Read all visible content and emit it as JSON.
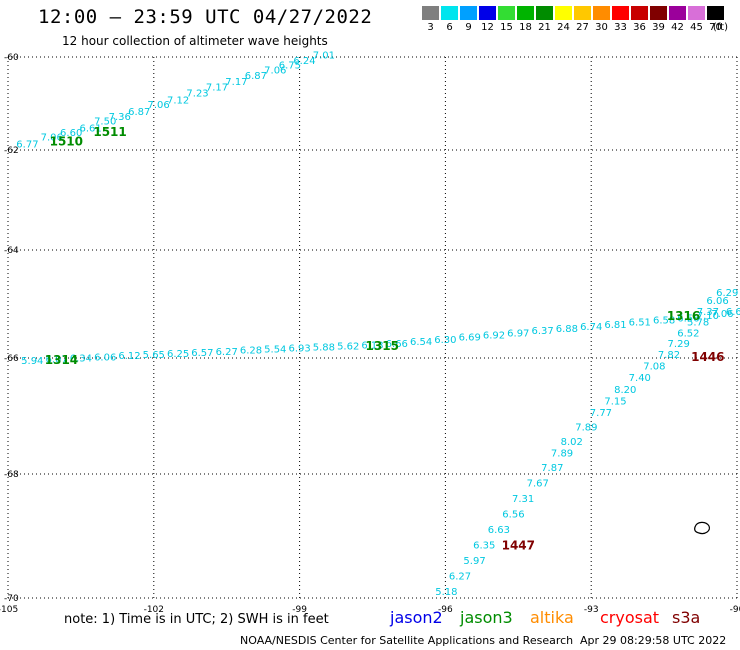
{
  "header": {
    "title": "12:00 – 23:59 UTC 04/27/2022",
    "subtitle": "12 hour collection of altimeter wave heights"
  },
  "legend": {
    "unit": "(ft)",
    "items": [
      {
        "label": "3",
        "color": "#7f7f7f"
      },
      {
        "label": "6",
        "color": "#00e5ee"
      },
      {
        "label": "9",
        "color": "#00a0ff"
      },
      {
        "label": "12",
        "color": "#0000e8"
      },
      {
        "label": "15",
        "color": "#33dd33"
      },
      {
        "label": "18",
        "color": "#00b400"
      },
      {
        "label": "21",
        "color": "#008c00"
      },
      {
        "label": "24",
        "color": "#ffff00"
      },
      {
        "label": "27",
        "color": "#ffc800"
      },
      {
        "label": "30",
        "color": "#ff8c00"
      },
      {
        "label": "33",
        "color": "#ff0000"
      },
      {
        "label": "36",
        "color": "#c80000"
      },
      {
        "label": "39",
        "color": "#800000"
      },
      {
        "label": "42",
        "color": "#9b009b"
      },
      {
        "label": "45",
        "color": "#d86fd8"
      },
      {
        "label": "70",
        "color": "#000000"
      }
    ]
  },
  "axes": {
    "lat": [
      {
        "label": "-60",
        "value": -60
      },
      {
        "label": "-62",
        "value": -62
      },
      {
        "label": "-64",
        "value": -64
      },
      {
        "label": "-66",
        "value": -66
      },
      {
        "label": "-68",
        "value": -68
      },
      {
        "label": "-70",
        "value": -70
      }
    ],
    "lon": [
      {
        "label": "-105",
        "value": -105
      },
      {
        "label": "-102",
        "value": -102
      },
      {
        "label": "-99",
        "value": -99
      },
      {
        "label": "-96",
        "value": -96
      },
      {
        "label": "-93",
        "value": -93
      },
      {
        "label": "-90",
        "value": -90
      }
    ]
  },
  "tracks": [
    {
      "color": "#00c8e0",
      "points": [
        {
          "lon": -104.6,
          "lat": -61.95,
          "v": "6.77"
        },
        {
          "lon": -104.1,
          "lat": -61.8,
          "v": "7.06"
        },
        {
          "lon": -103.7,
          "lat": -61.7,
          "v": "6.60"
        },
        {
          "lon": -103.3,
          "lat": -61.6,
          "v": "6.61"
        },
        {
          "lon": -103.0,
          "lat": -61.45,
          "v": "7.50"
        },
        {
          "lon": -102.7,
          "lat": -61.35,
          "v": "7.36"
        },
        {
          "lon": -102.3,
          "lat": -61.25,
          "v": "6.87"
        },
        {
          "lon": -101.9,
          "lat": -61.1,
          "v": "7.06"
        },
        {
          "lon": -101.5,
          "lat": -61.0,
          "v": "7.12"
        },
        {
          "lon": -101.1,
          "lat": -60.85,
          "v": "7.23"
        },
        {
          "lon": -100.7,
          "lat": -60.72,
          "v": "7.17"
        },
        {
          "lon": -100.3,
          "lat": -60.6,
          "v": "7.17"
        },
        {
          "lon": -99.9,
          "lat": -60.47,
          "v": "6.87"
        },
        {
          "lon": -99.5,
          "lat": -60.35,
          "v": "7.06"
        },
        {
          "lon": -99.2,
          "lat": -60.25,
          "v": "6.75"
        },
        {
          "lon": -98.9,
          "lat": -60.15,
          "v": "6.24"
        },
        {
          "lon": -98.5,
          "lat": -60.03,
          "v": "7.01"
        }
      ]
    },
    {
      "color": "#00c8e0",
      "points": [
        {
          "lon": -104.5,
          "lat": -66.1,
          "v": "5.94"
        },
        {
          "lon": -104.0,
          "lat": -66.08,
          "v": "6.07"
        },
        {
          "lon": -103.5,
          "lat": -66.06,
          "v": "6.34"
        },
        {
          "lon": -103.0,
          "lat": -66.04,
          "v": "6.06"
        },
        {
          "lon": -102.5,
          "lat": -66.02,
          "v": "6.12"
        },
        {
          "lon": -102.0,
          "lat": -66.0,
          "v": "5.65"
        },
        {
          "lon": -101.5,
          "lat": -65.98,
          "v": "6.25"
        },
        {
          "lon": -101.0,
          "lat": -65.96,
          "v": "6.57"
        },
        {
          "lon": -100.5,
          "lat": -65.94,
          "v": "6.27"
        },
        {
          "lon": -100.0,
          "lat": -65.92,
          "v": "6.28"
        },
        {
          "lon": -99.5,
          "lat": -65.9,
          "v": "5.54"
        },
        {
          "lon": -99.0,
          "lat": -65.88,
          "v": "6.93"
        },
        {
          "lon": -98.5,
          "lat": -65.86,
          "v": "5.88"
        },
        {
          "lon": -98.0,
          "lat": -65.84,
          "v": "5.62"
        },
        {
          "lon": -97.5,
          "lat": -65.82,
          "v": "6.13"
        },
        {
          "lon": -97.0,
          "lat": -65.8,
          "v": "6.66"
        },
        {
          "lon": -96.5,
          "lat": -65.76,
          "v": "6.54"
        },
        {
          "lon": -96.0,
          "lat": -65.72,
          "v": "6.30"
        },
        {
          "lon": -95.5,
          "lat": -65.68,
          "v": "6.69"
        },
        {
          "lon": -95.0,
          "lat": -65.64,
          "v": "6.92"
        },
        {
          "lon": -94.5,
          "lat": -65.6,
          "v": "6.97"
        },
        {
          "lon": -94.0,
          "lat": -65.56,
          "v": "6.37"
        },
        {
          "lon": -93.5,
          "lat": -65.52,
          "v": "6.88"
        },
        {
          "lon": -93.0,
          "lat": -65.48,
          "v": "6.74"
        },
        {
          "lon": -92.5,
          "lat": -65.44,
          "v": "6.81"
        },
        {
          "lon": -92.0,
          "lat": -65.4,
          "v": "6.51"
        },
        {
          "lon": -91.5,
          "lat": -65.36,
          "v": "6.58"
        },
        {
          "lon": -91.0,
          "lat": -65.32,
          "v": "6.56"
        },
        {
          "lon": -90.6,
          "lat": -65.28,
          "v": "7.10"
        },
        {
          "lon": -90.3,
          "lat": -65.24,
          "v": "7.06"
        },
        {
          "lon": -90.0,
          "lat": -65.2,
          "v": "6.62"
        }
      ]
    },
    {
      "color": "#00c8e0",
      "points": [
        {
          "lon": -95.98,
          "lat": -69.95,
          "v": "5.18"
        },
        {
          "lon": -95.7,
          "lat": -69.7,
          "v": "6.27"
        },
        {
          "lon": -95.4,
          "lat": -69.45,
          "v": "5.97"
        },
        {
          "lon": -95.2,
          "lat": -69.2,
          "v": "6.35"
        },
        {
          "lon": -94.9,
          "lat": -68.95,
          "v": "6.63"
        },
        {
          "lon": -94.6,
          "lat": -68.7,
          "v": "6.56"
        },
        {
          "lon": -94.4,
          "lat": -68.45,
          "v": "7.31"
        },
        {
          "lon": -94.1,
          "lat": -68.2,
          "v": "7.67"
        },
        {
          "lon": -93.8,
          "lat": -67.95,
          "v": "7.87"
        },
        {
          "lon": -93.6,
          "lat": -67.7,
          "v": "7.89"
        },
        {
          "lon": -93.4,
          "lat": -67.5,
          "v": "8.02"
        },
        {
          "lon": -93.1,
          "lat": -67.25,
          "v": "7.89"
        },
        {
          "lon": -92.8,
          "lat": -67.0,
          "v": "7.77"
        },
        {
          "lon": -92.5,
          "lat": -66.8,
          "v": "7.15"
        },
        {
          "lon": -92.3,
          "lat": -66.6,
          "v": "8.20"
        },
        {
          "lon": -92.0,
          "lat": -66.4,
          "v": "7.40"
        },
        {
          "lon": -91.7,
          "lat": -66.2,
          "v": "7.08"
        },
        {
          "lon": -91.4,
          "lat": -66.0,
          "v": "7.82"
        },
        {
          "lon": -91.2,
          "lat": -65.8,
          "v": "7.29"
        },
        {
          "lon": -91.0,
          "lat": -65.6,
          "v": "6.52"
        },
        {
          "lon": -90.8,
          "lat": -65.4,
          "v": "5.78"
        },
        {
          "lon": -90.6,
          "lat": -65.2,
          "v": "7.37"
        },
        {
          "lon": -90.4,
          "lat": -65.0,
          "v": "6.06"
        },
        {
          "lon": -90.2,
          "lat": -64.85,
          "v": "6.29"
        }
      ]
    }
  ],
  "pass_labels": [
    {
      "text": "1510",
      "lon": -103.8,
      "lat": -61.9,
      "color": "#008c00"
    },
    {
      "text": "1511",
      "lon": -102.9,
      "lat": -61.7,
      "color": "#008c00"
    },
    {
      "text": "1314",
      "lon": -103.9,
      "lat": -66.1,
      "color": "#008c00"
    },
    {
      "text": "1315",
      "lon": -97.3,
      "lat": -65.85,
      "color": "#008c00"
    },
    {
      "text": "1316",
      "lon": -91.1,
      "lat": -65.3,
      "color": "#008c00"
    },
    {
      "text": "1446",
      "lon": -90.6,
      "lat": -66.05,
      "color": "#800000"
    },
    {
      "text": "1447",
      "lon": -94.5,
      "lat": -69.22,
      "color": "#800000"
    }
  ],
  "note": "note: 1) Time is in UTC; 2) SWH is in feet",
  "satellites": [
    {
      "name": "jason2",
      "color": "#0000e8"
    },
    {
      "name": "jason3",
      "color": "#008c00"
    },
    {
      "name": "altika",
      "color": "#ff8c00"
    },
    {
      "name": "cryosat",
      "color": "#ff0000"
    },
    {
      "name": "s3a",
      "color": "#800000"
    }
  ],
  "footer": {
    "source": "NOAA/NESDIS Center for Satellite Applications and Research",
    "generated": "Apr 29 08:29:58 UTC 2022"
  }
}
